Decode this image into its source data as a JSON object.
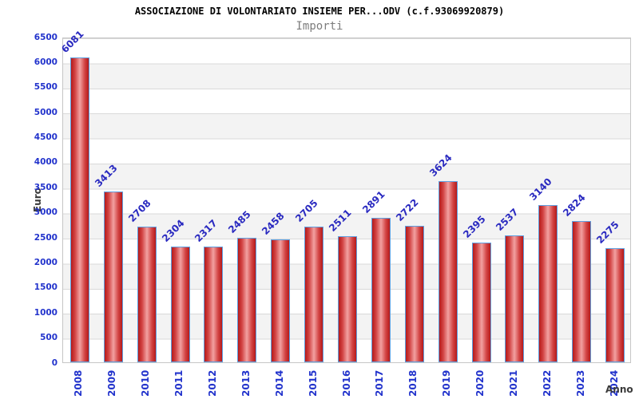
{
  "title": "ASSOCIAZIONE DI VOLONTARIATO INSIEME PER...ODV (c.f.93069920879)",
  "subtitle": "Importi",
  "chart_data": {
    "type": "bar",
    "title": "ASSOCIAZIONE DI VOLONTARIATO INSIEME PER...ODV (c.f.93069920879)",
    "subtitle": "Importi",
    "xlabel": "Anno",
    "ylabel": "Euro",
    "categories": [
      "2008",
      "2009",
      "2010",
      "2011",
      "2012",
      "2013",
      "2014",
      "2015",
      "2016",
      "2017",
      "2018",
      "2019",
      "2020",
      "2021",
      "2022",
      "2023",
      "2024"
    ],
    "values": [
      6081,
      3413,
      2708,
      2304,
      2317,
      2485,
      2458,
      2705,
      2511,
      2891,
      2722,
      3624,
      2395,
      2537,
      3140,
      2824,
      2275
    ],
    "ylim": [
      0,
      6500
    ],
    "y_tick_step": 500,
    "y_ticks": [
      0,
      500,
      1000,
      1500,
      2000,
      2500,
      3000,
      3500,
      4000,
      4500,
      5000,
      5500,
      6000,
      6500
    ],
    "grid": true,
    "legend": "none",
    "band_stripes": "alternating white/gray every 500 units, white at top",
    "colors": {
      "title_text": "#000000",
      "subtitle_text": "#7d7d7d",
      "axis_text": "#2233cc",
      "value_label": "#2a2ac0",
      "axis_title": "#3a3a3a",
      "bar_edge": "#b51a1a",
      "bar_center": "#f2a1a1",
      "bar_border": "#5e9fe0",
      "band_gray": "#f3f3f3",
      "grid_line": "#d9d9d9",
      "plot_border": "#c6c6c6"
    }
  }
}
